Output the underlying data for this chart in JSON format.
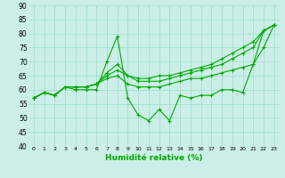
{
  "xlabel": "Humidité relative (%)",
  "bg_color": "#cceee8",
  "grid_color": "#99ddcc",
  "line_color": "#00aa00",
  "xlim": [
    -0.5,
    23.5
  ],
  "ylim": [
    40,
    90
  ],
  "yticks": [
    40,
    45,
    50,
    55,
    60,
    65,
    70,
    75,
    80,
    85,
    90
  ],
  "xticks": [
    0,
    1,
    2,
    3,
    4,
    5,
    6,
    7,
    8,
    9,
    10,
    11,
    12,
    13,
    14,
    15,
    16,
    17,
    18,
    19,
    20,
    21,
    22,
    23
  ],
  "series": [
    [
      57,
      59,
      58,
      61,
      60,
      60,
      60,
      70,
      79,
      57,
      51,
      49,
      53,
      49,
      58,
      57,
      58,
      58,
      60,
      60,
      59,
      69,
      81,
      83
    ],
    [
      57,
      59,
      58,
      61,
      61,
      61,
      62,
      65,
      67,
      65,
      64,
      64,
      65,
      65,
      66,
      67,
      68,
      69,
      71,
      73,
      75,
      77,
      81,
      83
    ],
    [
      57,
      59,
      58,
      61,
      61,
      61,
      62,
      66,
      69,
      65,
      63,
      63,
      63,
      64,
      65,
      66,
      67,
      68,
      69,
      71,
      73,
      75,
      81,
      83
    ],
    [
      57,
      59,
      58,
      61,
      61,
      61,
      62,
      64,
      65,
      62,
      61,
      61,
      61,
      62,
      63,
      64,
      64,
      65,
      66,
      67,
      68,
      69,
      75,
      83
    ]
  ]
}
